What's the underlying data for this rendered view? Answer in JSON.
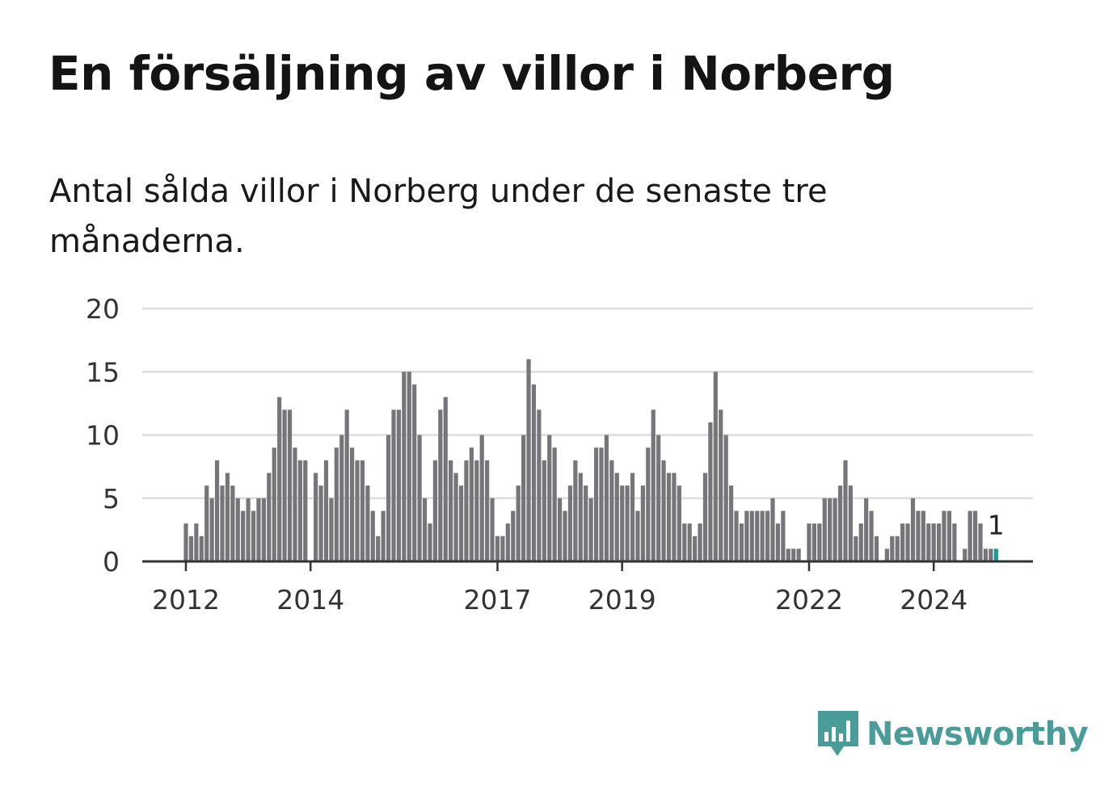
{
  "header": {
    "title": "En försäljning av villor i Norberg",
    "subtitle": "Antal sålda villor i Norberg under de senaste tre månaderna."
  },
  "colors": {
    "bar": "#75757a",
    "highlight": "#1a9a92",
    "grid": "#dddddd",
    "axis": "#333333",
    "brand": "#4a9c99"
  },
  "brand": {
    "name": "Newsworthy",
    "icon": "bar-chart-speech-bubble-icon"
  },
  "chart_data": {
    "type": "bar",
    "title": "",
    "xlabel": "",
    "ylabel": "",
    "ylim": [
      0,
      20
    ],
    "yticks": [
      0,
      5,
      10,
      15,
      20
    ],
    "xticks": [
      {
        "label": "2012",
        "value": "2012-01"
      },
      {
        "label": "2014",
        "value": "2014-01"
      },
      {
        "label": "2017",
        "value": "2017-01"
      },
      {
        "label": "2019",
        "value": "2019-01"
      },
      {
        "label": "2022",
        "value": "2022-01"
      },
      {
        "label": "2024",
        "value": "2024-01"
      }
    ],
    "grid": true,
    "highlight_last": true,
    "last_value_label": "1",
    "start_month": "2012-01",
    "values": [
      3,
      2,
      3,
      2,
      6,
      5,
      8,
      6,
      7,
      6,
      5,
      4,
      5,
      4,
      5,
      5,
      7,
      9,
      13,
      12,
      12,
      9,
      8,
      8,
      0,
      7,
      6,
      8,
      5,
      9,
      10,
      12,
      9,
      8,
      8,
      6,
      4,
      2,
      4,
      10,
      12,
      12,
      15,
      15,
      14,
      10,
      5,
      3,
      8,
      12,
      13,
      8,
      7,
      6,
      8,
      9,
      8,
      10,
      8,
      5,
      2,
      2,
      3,
      4,
      6,
      10,
      16,
      14,
      12,
      8,
      10,
      9,
      5,
      4,
      6,
      8,
      7,
      6,
      5,
      9,
      9,
      10,
      8,
      7,
      6,
      6,
      7,
      4,
      6,
      9,
      12,
      10,
      8,
      7,
      7,
      6,
      3,
      3,
      2,
      3,
      7,
      11,
      15,
      12,
      10,
      6,
      4,
      3,
      4,
      4,
      4,
      4,
      4,
      5,
      3,
      4,
      1,
      1,
      1,
      0,
      3,
      3,
      3,
      5,
      5,
      5,
      6,
      8,
      6,
      2,
      3,
      5,
      4,
      2,
      0,
      1,
      2,
      2,
      3,
      3,
      5,
      4,
      4,
      3,
      3,
      3,
      4,
      4,
      3,
      0,
      1,
      4,
      4,
      3,
      1,
      1,
      1
    ]
  }
}
